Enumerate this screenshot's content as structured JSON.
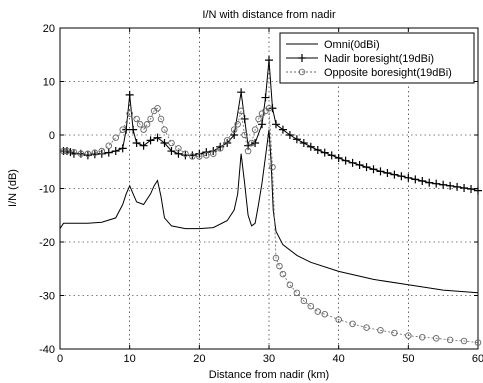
{
  "chart_data": {
    "type": "line",
    "title": "I/N with distance from nadir",
    "xlabel": "Distance from nadir (km)",
    "ylabel": "I/N (dB)",
    "xlim": [
      0,
      60
    ],
    "ylim": [
      -40,
      20
    ],
    "xticks": [
      0,
      10,
      20,
      30,
      40,
      50,
      60
    ],
    "yticks": [
      -40,
      -30,
      -20,
      -10,
      0,
      10,
      20
    ],
    "grid": true,
    "legend_position": "top-right",
    "series": [
      {
        "name": "Omni(0dBi)",
        "marker": "none",
        "color": "#000000",
        "x": [
          0,
          0.5,
          2,
          4,
          6,
          8,
          9,
          9.5,
          10,
          10.5,
          11,
          12,
          13,
          13.5,
          14,
          14.5,
          15,
          16,
          18,
          20,
          22,
          24,
          25,
          25.5,
          26,
          26.5,
          27,
          27.5,
          28,
          28.5,
          29,
          29.5,
          30,
          30.3,
          30.6,
          31,
          32,
          34,
          36,
          40,
          45,
          50,
          55,
          60
        ],
        "y": [
          -17.5,
          -16.5,
          -16.5,
          -16.5,
          -16.3,
          -15.5,
          -13,
          -11,
          -9.5,
          -11,
          -12.5,
          -13,
          -11,
          -9.5,
          -8.5,
          -11.5,
          -15.5,
          -17,
          -17.5,
          -17.5,
          -17.3,
          -16,
          -14,
          -11,
          -3.5,
          -9,
          -15,
          -17,
          -16.5,
          -13,
          -9,
          -4,
          1,
          -5,
          -14,
          -18,
          -20.5,
          -22.5,
          -23.8,
          -25.5,
          -27,
          -28,
          -29,
          -29.5
        ]
      },
      {
        "name": "Nadir boresight(19dBi)",
        "marker": "plus",
        "color": "#000000",
        "x": [
          0.5,
          1,
          1.5,
          2,
          3,
          4,
          5,
          6,
          7,
          8,
          9,
          9.5,
          10,
          10.5,
          11,
          12,
          13,
          14,
          15,
          16,
          17,
          18,
          19,
          20,
          21,
          22,
          23,
          24,
          25,
          26,
          26.5,
          27,
          28,
          29,
          29.5,
          30,
          30.5,
          31,
          32,
          33,
          34,
          35,
          36,
          37,
          38,
          39,
          40,
          41,
          42,
          43,
          44,
          45,
          46,
          47,
          48,
          49,
          50,
          51,
          52,
          53,
          54,
          55,
          56,
          57,
          58,
          59,
          60
        ],
        "y": [
          -3,
          -3,
          -3.2,
          -3.5,
          -3.5,
          -3.8,
          -3.6,
          -3.5,
          -3.3,
          -3,
          -2.5,
          1,
          7.5,
          1,
          -1.5,
          -2,
          -1,
          -0.5,
          -1.5,
          -3,
          -3.5,
          -3.8,
          -3.8,
          -3.5,
          -3.2,
          -3,
          -2.2,
          -1.5,
          0,
          8,
          3,
          -2,
          -1.5,
          2,
          7,
          14,
          5,
          2,
          1,
          0,
          -0.8,
          -1.5,
          -2.2,
          -2.8,
          -3.3,
          -3.8,
          -4.3,
          -4.8,
          -5.2,
          -5.6,
          -6,
          -6.4,
          -6.8,
          -7.1,
          -7.4,
          -7.7,
          -8,
          -8.3,
          -8.6,
          -8.9,
          -9.1,
          -9.3,
          -9.5,
          -9.7,
          -9.9,
          -10.1,
          -10.4
        ]
      },
      {
        "name": "Opposite boresight(19dBi)",
        "marker": "circle",
        "color": "#666666",
        "x": [
          0.5,
          1,
          2,
          3,
          4,
          5,
          6,
          7,
          8,
          9,
          10,
          11,
          11.5,
          12,
          12.5,
          13,
          13.5,
          14,
          14.5,
          15,
          16,
          17,
          18,
          19,
          20,
          21,
          22,
          23,
          24,
          25,
          25.5,
          26,
          26.5,
          27,
          27.5,
          28,
          28.5,
          29,
          29.5,
          30,
          30.5,
          31,
          31.5,
          32,
          33,
          34,
          35,
          36,
          37,
          38,
          40,
          42,
          44,
          46,
          48,
          50,
          52,
          54,
          56,
          58,
          60
        ],
        "y": [
          -3,
          -3,
          -3.2,
          -3.5,
          -3.5,
          -3.3,
          -3,
          -2,
          -0.5,
          1,
          4,
          3,
          2,
          1,
          2,
          3,
          4.5,
          5,
          3,
          1,
          -1.5,
          -2.5,
          -3.5,
          -4,
          -4,
          -3.8,
          -3.5,
          -2.5,
          -1,
          1,
          2,
          4.5,
          0,
          -3,
          -1.5,
          1,
          3,
          4,
          4.5,
          5,
          -6,
          -23,
          -24.5,
          -26,
          -28,
          -29.5,
          -31,
          -32,
          -33,
          -33.5,
          -34.5,
          -35.3,
          -36,
          -36.5,
          -37,
          -37.5,
          -37.8,
          -38,
          -38.3,
          -38.5,
          -38.8
        ]
      }
    ]
  }
}
